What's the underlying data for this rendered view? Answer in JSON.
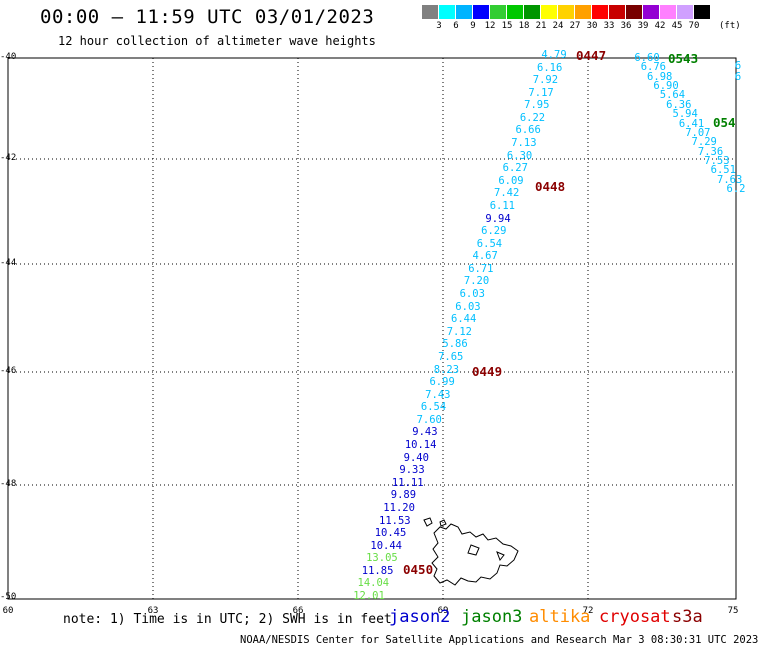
{
  "header": {
    "title": "00:00 – 11:59 UTC 03/01/2023",
    "subtitle": "12 hour collection of altimeter wave heights"
  },
  "colorbar": {
    "colors": [
      "#808080",
      "#00ffff",
      "#00b4ff",
      "#0000ff",
      "#32cd32",
      "#00c800",
      "#009600",
      "#ffff00",
      "#ffd200",
      "#ffa000",
      "#ff0000",
      "#c80000",
      "#780000",
      "#9400d3",
      "#ff80ff",
      "#d0a0ff",
      "#000000"
    ],
    "labels": [
      "3",
      "6",
      "9",
      "12",
      "15",
      "18",
      "21",
      "24",
      "27",
      "30",
      "33",
      "36",
      "39",
      "42",
      "45",
      "70"
    ],
    "unit": "(ft)"
  },
  "axes": {
    "lat_labels": [
      "-40",
      "-42",
      "-44",
      "-46",
      "-48",
      "-50"
    ],
    "lon_labels": [
      "60",
      "63",
      "66",
      "69",
      "72",
      "75"
    ]
  },
  "track_colors": {
    "jason2": "#0000cd",
    "jason3": "#008000",
    "altika": "#ff8c00",
    "cryosat": "#e00000",
    "s3a": "#8b0000"
  },
  "value_colors": {
    "light": "#00bfff",
    "mid": "#00aacc",
    "blue": "#0000cd",
    "lgreen": "#66dd44"
  },
  "main_track": [
    {
      "v": "4.79",
      "c": "light"
    },
    {
      "v": "6.16",
      "c": "light"
    },
    {
      "v": "7.92",
      "c": "light"
    },
    {
      "v": "7.17",
      "c": "light"
    },
    {
      "v": "7.95",
      "c": "light"
    },
    {
      "v": "6.22",
      "c": "light"
    },
    {
      "v": "6.66",
      "c": "light"
    },
    {
      "v": "7.13",
      "c": "light"
    },
    {
      "v": "6.30",
      "c": "light"
    },
    {
      "v": "6.27",
      "c": "light"
    },
    {
      "v": "6.09",
      "c": "light"
    },
    {
      "v": "7.42",
      "c": "light"
    },
    {
      "v": "6.11",
      "c": "light"
    },
    {
      "v": "9.94",
      "c": "blue"
    },
    {
      "v": "6.29",
      "c": "light"
    },
    {
      "v": "6.54",
      "c": "light"
    },
    {
      "v": "4.67",
      "c": "light"
    },
    {
      "v": "6.71",
      "c": "light"
    },
    {
      "v": "7.20",
      "c": "light"
    },
    {
      "v": "6.03",
      "c": "light"
    },
    {
      "v": "6.03",
      "c": "light"
    },
    {
      "v": "6.44",
      "c": "light"
    },
    {
      "v": "7.12",
      "c": "light"
    },
    {
      "v": "5.86",
      "c": "light"
    },
    {
      "v": "7.65",
      "c": "light"
    },
    {
      "v": "8.23",
      "c": "light"
    },
    {
      "v": "6.99",
      "c": "light"
    },
    {
      "v": "7.43",
      "c": "light"
    },
    {
      "v": "6.54",
      "c": "light"
    },
    {
      "v": "7.60",
      "c": "light"
    },
    {
      "v": "9.43",
      "c": "blue"
    },
    {
      "v": "10.14",
      "c": "blue"
    },
    {
      "v": "9.40",
      "c": "blue"
    },
    {
      "v": "9.33",
      "c": "blue"
    },
    {
      "v": "11.11",
      "c": "blue"
    },
    {
      "v": "9.89",
      "c": "blue"
    },
    {
      "v": "11.20",
      "c": "blue"
    },
    {
      "v": "11.53",
      "c": "blue"
    },
    {
      "v": "10.45",
      "c": "blue"
    },
    {
      "v": "10.44",
      "c": "blue"
    },
    {
      "v": "13.05",
      "c": "lgreen"
    },
    {
      "v": "11.85",
      "c": "blue"
    },
    {
      "v": "14.04",
      "c": "lgreen"
    },
    {
      "v": "12.01",
      "c": "lgreen"
    }
  ],
  "second_track": [
    {
      "v": "6.60",
      "c": "light"
    },
    {
      "v": "6.76",
      "c": "light"
    },
    {
      "v": "6.98",
      "c": "light"
    },
    {
      "v": "6.90",
      "c": "light"
    },
    {
      "v": "5.64",
      "c": "light"
    },
    {
      "v": "6.36",
      "c": "light"
    },
    {
      "v": "5.94",
      "c": "light"
    },
    {
      "v": "6.41",
      "c": "light"
    },
    {
      "v": "7.07",
      "c": "light"
    },
    {
      "v": "7.29",
      "c": "light"
    },
    {
      "v": "7.36",
      "c": "light"
    },
    {
      "v": "7.53",
      "c": "light"
    },
    {
      "v": "6.51",
      "c": "light"
    },
    {
      "v": "7.63",
      "c": "light"
    },
    {
      "v": "6.2",
      "c": "light"
    }
  ],
  "third_track": [
    {
      "v": "6",
      "c": "light"
    },
    {
      "v": "6",
      "c": "light"
    }
  ],
  "time_labels": [
    {
      "t": "0447",
      "c": "s3a"
    },
    {
      "t": "0448",
      "c": "s3a"
    },
    {
      "t": "0449",
      "c": "s3a"
    },
    {
      "t": "0450",
      "c": "s3a"
    },
    {
      "t": "0543",
      "c": "jason3"
    },
    {
      "t": "054",
      "c": "jason3"
    }
  ],
  "footer": {
    "note": "note: 1) Time is in UTC; 2) SWH is in feet",
    "satellites": [
      {
        "name": "jason2",
        "color": "#0000cd"
      },
      {
        "name": "jason3",
        "color": "#008000"
      },
      {
        "name": "altika",
        "color": "#ff8c00"
      },
      {
        "name": "cryosat",
        "color": "#e00000"
      },
      {
        "name": "s3a",
        "color": "#8b0000"
      }
    ],
    "credit": "NOAA/NESDIS Center for Satellite Applications and Research    Mar  3 08:30:31 UTC 2023"
  }
}
